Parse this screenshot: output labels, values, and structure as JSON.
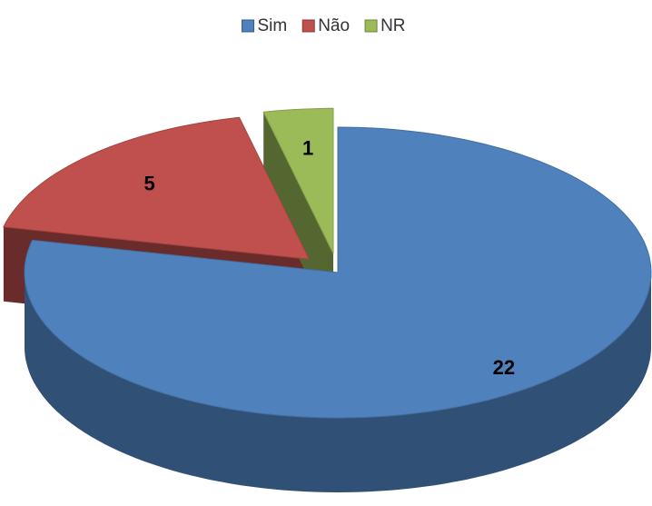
{
  "chart_data": {
    "type": "pie3d",
    "categories": [
      "Sim",
      "Não",
      "NR"
    ],
    "values": [
      22,
      5,
      1
    ],
    "colors": [
      "#4f81bd",
      "#c0504d",
      "#9bbb59"
    ],
    "legend": "top"
  }
}
